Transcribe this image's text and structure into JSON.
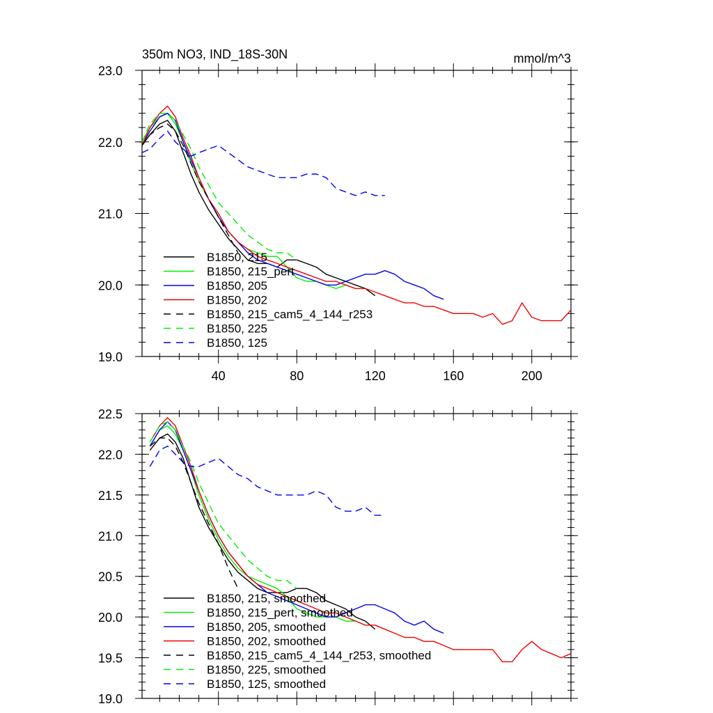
{
  "chart_data": [
    {
      "type": "line",
      "title": "350m NO3, IND_18S-30N",
      "units": "mmol/m^3",
      "xlim": [
        1,
        220
      ],
      "ylim": [
        19.0,
        23.0
      ],
      "x_ticks": [
        40,
        80,
        120,
        160,
        200
      ],
      "x_tick_labels": [
        "40",
        "80",
        "120",
        "160",
        "200"
      ],
      "y_ticks": [
        19.0,
        20.0,
        21.0,
        22.0,
        23.0
      ],
      "y_tick_labels": [
        "19.0",
        "20.0",
        "21.0",
        "22.0",
        "23.0"
      ],
      "legend_position": "bottom-left",
      "series": [
        {
          "name": "B1850, 215",
          "color": "#000000",
          "dash": "solid",
          "x": [
            1,
            5,
            10,
            14,
            18,
            22,
            26,
            30,
            35,
            40,
            45,
            50,
            55,
            60,
            65,
            70,
            75,
            80,
            85,
            90,
            95,
            100,
            105,
            110,
            115,
            120
          ],
          "y": [
            21.95,
            22.1,
            22.25,
            22.3,
            22.15,
            21.85,
            21.55,
            21.3,
            21.05,
            20.85,
            20.65,
            20.5,
            20.35,
            20.3,
            20.3,
            20.25,
            20.35,
            20.35,
            20.3,
            20.25,
            20.15,
            20.1,
            20.05,
            20.0,
            19.95,
            19.85
          ]
        },
        {
          "name": "B1850, 215_pert",
          "color": "#00ee00",
          "dash": "solid",
          "x": [
            1,
            5,
            10,
            14,
            18,
            22,
            26,
            30,
            35,
            40,
            45,
            50,
            55,
            60,
            65,
            70,
            75,
            80,
            85,
            90,
            95,
            100,
            105,
            110
          ],
          "y": [
            22.0,
            22.2,
            22.35,
            22.4,
            22.25,
            22.0,
            21.7,
            21.45,
            21.2,
            20.95,
            20.75,
            20.6,
            20.5,
            20.45,
            20.4,
            20.4,
            20.25,
            20.1,
            20.05,
            20.05,
            20.0,
            19.95,
            20.0,
            19.95
          ]
        },
        {
          "name": "B1850, 205",
          "color": "#0000ee",
          "dash": "solid",
          "x": [
            1,
            5,
            10,
            14,
            18,
            22,
            26,
            30,
            35,
            40,
            45,
            50,
            55,
            60,
            65,
            70,
            75,
            80,
            85,
            90,
            95,
            100,
            105,
            110,
            115,
            120,
            125,
            130,
            135,
            140,
            145,
            150,
            155
          ],
          "y": [
            21.95,
            22.15,
            22.35,
            22.4,
            22.3,
            22.0,
            21.75,
            21.5,
            21.2,
            20.95,
            20.75,
            20.6,
            20.45,
            20.35,
            20.3,
            20.25,
            20.2,
            20.15,
            20.1,
            20.05,
            20.0,
            20.0,
            20.05,
            20.1,
            20.15,
            20.15,
            20.2,
            20.15,
            20.05,
            20.0,
            19.95,
            19.85,
            19.8
          ]
        },
        {
          "name": "B1850, 202",
          "color": "#ee0000",
          "dash": "solid",
          "x": [
            1,
            5,
            10,
            14,
            18,
            22,
            26,
            30,
            35,
            40,
            45,
            50,
            55,
            60,
            65,
            70,
            75,
            80,
            85,
            90,
            95,
            100,
            105,
            110,
            115,
            120,
            125,
            130,
            135,
            140,
            145,
            150,
            155,
            160,
            165,
            170,
            175,
            180,
            185,
            190,
            195,
            200,
            205,
            210,
            215,
            220
          ],
          "y": [
            21.95,
            22.2,
            22.4,
            22.5,
            22.35,
            22.05,
            21.8,
            21.5,
            21.2,
            21.0,
            20.75,
            20.6,
            20.5,
            20.4,
            20.35,
            20.3,
            20.25,
            20.2,
            20.15,
            20.1,
            20.05,
            20.05,
            20.0,
            19.95,
            19.95,
            19.9,
            19.85,
            19.8,
            19.75,
            19.75,
            19.7,
            19.7,
            19.65,
            19.6,
            19.6,
            19.6,
            19.55,
            19.6,
            19.45,
            19.5,
            19.75,
            19.55,
            19.5,
            19.5,
            19.5,
            19.65
          ]
        },
        {
          "name": "B1850, 215_cam5_4_144_r253",
          "color": "#000000",
          "dash": "dashed",
          "x": [
            1,
            5,
            10,
            14,
            18,
            22,
            26,
            30,
            35,
            40,
            45,
            50
          ],
          "y": [
            21.95,
            22.1,
            22.2,
            22.25,
            22.15,
            21.95,
            21.7,
            21.45,
            21.2,
            20.95,
            20.7,
            20.45
          ]
        },
        {
          "name": "B1850, 225",
          "color": "#00ee00",
          "dash": "dashed",
          "x": [
            1,
            5,
            10,
            14,
            18,
            22,
            26,
            30,
            35,
            40,
            45,
            50,
            55,
            60,
            65,
            70,
            75,
            80
          ],
          "y": [
            22.0,
            22.25,
            22.4,
            22.4,
            22.3,
            22.1,
            21.9,
            21.65,
            21.4,
            21.15,
            21.0,
            20.85,
            20.7,
            20.6,
            20.5,
            20.45,
            20.45,
            20.35
          ]
        },
        {
          "name": "B1850, 125",
          "color": "#0000ee",
          "dash": "dashed",
          "x": [
            1,
            5,
            10,
            14,
            18,
            22,
            26,
            30,
            35,
            40,
            45,
            50,
            55,
            60,
            65,
            70,
            75,
            80,
            85,
            90,
            95,
            100,
            105,
            110,
            115,
            120,
            125
          ],
          "y": [
            21.85,
            21.9,
            22.05,
            22.15,
            22.0,
            21.9,
            21.8,
            21.85,
            21.9,
            21.95,
            21.85,
            21.75,
            21.65,
            21.6,
            21.55,
            21.5,
            21.5,
            21.5,
            21.55,
            21.55,
            21.5,
            21.35,
            21.3,
            21.25,
            21.3,
            21.25,
            21.25
          ]
        }
      ]
    },
    {
      "type": "line",
      "xlim": [
        1,
        220
      ],
      "ylim": [
        19.0,
        22.5
      ],
      "x_ticks": [
        40,
        80,
        120,
        160,
        200
      ],
      "y_ticks": [
        19.0,
        19.5,
        20.0,
        20.5,
        21.0,
        21.5,
        22.0,
        22.5
      ],
      "y_tick_labels": [
        "19.0",
        "19.5",
        "20.0",
        "20.5",
        "21.0",
        "21.5",
        "22.0",
        "22.5"
      ],
      "legend_position": "bottom-left",
      "series": [
        {
          "name": "B1850, 215, smoothed",
          "color": "#000000",
          "dash": "solid",
          "x": [
            5,
            10,
            14,
            18,
            22,
            26,
            30,
            35,
            40,
            45,
            50,
            55,
            60,
            65,
            70,
            75,
            80,
            85,
            90,
            95,
            100,
            105,
            110,
            115,
            120
          ],
          "y": [
            22.05,
            22.2,
            22.25,
            22.15,
            21.95,
            21.65,
            21.35,
            21.1,
            20.9,
            20.7,
            20.55,
            20.45,
            20.35,
            20.3,
            20.3,
            20.3,
            20.35,
            20.35,
            20.3,
            20.2,
            20.15,
            20.1,
            20.0,
            19.95,
            19.85
          ]
        },
        {
          "name": "B1850, 215_pert, smoothed",
          "color": "#00ee00",
          "dash": "solid",
          "x": [
            5,
            10,
            14,
            18,
            22,
            26,
            30,
            35,
            40,
            45,
            50,
            55,
            60,
            65,
            70,
            75,
            80,
            85,
            90,
            95,
            100,
            105,
            110
          ],
          "y": [
            22.1,
            22.3,
            22.35,
            22.25,
            22.05,
            21.8,
            21.5,
            21.2,
            20.95,
            20.75,
            20.6,
            20.5,
            20.45,
            20.4,
            20.35,
            20.25,
            20.1,
            20.05,
            20.0,
            20.0,
            20.0,
            19.95,
            19.95
          ]
        },
        {
          "name": "B1850, 205, smoothed",
          "color": "#0000ee",
          "dash": "solid",
          "x": [
            5,
            10,
            14,
            18,
            22,
            26,
            30,
            35,
            40,
            45,
            50,
            55,
            60,
            65,
            70,
            75,
            80,
            85,
            90,
            95,
            100,
            105,
            110,
            115,
            120,
            125,
            130,
            135,
            140,
            145,
            150,
            155
          ],
          "y": [
            22.1,
            22.3,
            22.4,
            22.3,
            22.05,
            21.8,
            21.55,
            21.25,
            21.0,
            20.8,
            20.65,
            20.5,
            20.4,
            20.3,
            20.25,
            20.2,
            20.15,
            20.1,
            20.05,
            20.0,
            20.0,
            20.05,
            20.1,
            20.15,
            20.15,
            20.1,
            20.05,
            19.95,
            19.9,
            19.95,
            19.85,
            19.8
          ]
        },
        {
          "name": "B1850, 202, smoothed",
          "color": "#ee0000",
          "dash": "solid",
          "x": [
            5,
            10,
            14,
            18,
            22,
            26,
            30,
            35,
            40,
            45,
            50,
            55,
            60,
            65,
            70,
            75,
            80,
            85,
            90,
            95,
            100,
            105,
            110,
            115,
            120,
            125,
            130,
            135,
            140,
            145,
            150,
            155,
            160,
            165,
            170,
            175,
            180,
            185,
            190,
            195,
            200,
            205,
            210,
            215,
            220
          ],
          "y": [
            22.15,
            22.35,
            22.45,
            22.35,
            22.1,
            21.85,
            21.55,
            21.25,
            21.0,
            20.8,
            20.65,
            20.5,
            20.4,
            20.35,
            20.3,
            20.25,
            20.2,
            20.15,
            20.1,
            20.05,
            20.05,
            20.0,
            19.95,
            19.9,
            19.9,
            19.85,
            19.8,
            19.75,
            19.75,
            19.7,
            19.7,
            19.65,
            19.6,
            19.6,
            19.6,
            19.6,
            19.6,
            19.45,
            19.45,
            19.6,
            19.7,
            19.6,
            19.55,
            19.5,
            19.55
          ]
        },
        {
          "name": "B1850, 215_cam5_4_144_r253, smoothed",
          "color": "#000000",
          "dash": "dashed",
          "x": [
            5,
            10,
            14,
            18,
            22,
            26,
            30,
            35,
            40,
            45,
            50
          ],
          "y": [
            22.1,
            22.2,
            22.2,
            22.1,
            21.9,
            21.65,
            21.4,
            21.15,
            20.9,
            20.6,
            20.35
          ]
        },
        {
          "name": "B1850, 225, smoothed",
          "color": "#00ee00",
          "dash": "dashed",
          "x": [
            5,
            10,
            14,
            18,
            22,
            26,
            30,
            35,
            40,
            45,
            50,
            55,
            60,
            65,
            70,
            75,
            80
          ],
          "y": [
            22.15,
            22.35,
            22.4,
            22.3,
            22.1,
            21.9,
            21.65,
            21.4,
            21.15,
            21.0,
            20.85,
            20.7,
            20.6,
            20.5,
            20.45,
            20.45,
            20.35
          ]
        },
        {
          "name": "B1850, 125, smoothed",
          "color": "#0000ee",
          "dash": "dashed",
          "x": [
            5,
            10,
            14,
            18,
            22,
            26,
            30,
            35,
            40,
            45,
            50,
            55,
            60,
            65,
            70,
            75,
            80,
            85,
            90,
            95,
            100,
            105,
            110,
            115,
            120,
            125
          ],
          "y": [
            21.85,
            22.05,
            22.1,
            22.0,
            21.9,
            21.85,
            21.85,
            21.9,
            21.95,
            21.85,
            21.75,
            21.7,
            21.6,
            21.55,
            21.5,
            21.5,
            21.5,
            21.5,
            21.55,
            21.5,
            21.35,
            21.3,
            21.3,
            21.35,
            21.25,
            21.25
          ]
        }
      ]
    }
  ]
}
